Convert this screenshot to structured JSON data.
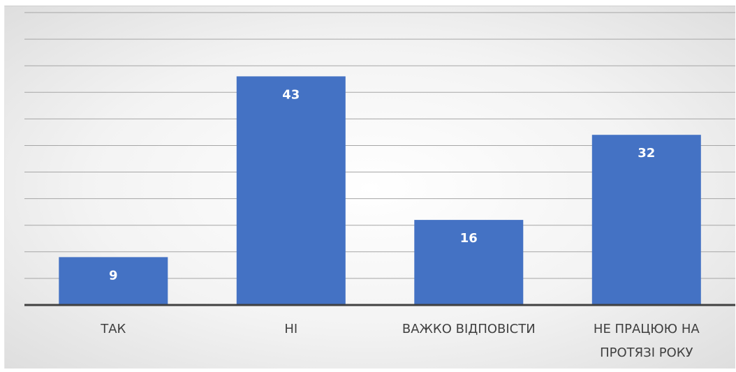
{
  "chart_data": {
    "type": "bar",
    "categories": [
      "ТАК",
      "НІ",
      "ВАЖКО ВІДПОВІСТИ",
      "НЕ ПРАЦЮЮ НА ПРОТЯЗІ РОКУ"
    ],
    "category_lines": [
      [
        "ТАК"
      ],
      [
        "НІ"
      ],
      [
        "ВАЖКО ВІДПОВІСТИ"
      ],
      [
        "НЕ ПРАЦЮЮ НА",
        "ПРОТЯЗІ РОКУ"
      ]
    ],
    "values": [
      9,
      43,
      16,
      32
    ],
    "data_labels": [
      "9",
      "43",
      "16",
      "32"
    ],
    "ylim": [
      0,
      55
    ],
    "grid": true,
    "bar_color": "#4472c4",
    "grid_color": "#a6a6a6",
    "axis_color": "#404040"
  }
}
